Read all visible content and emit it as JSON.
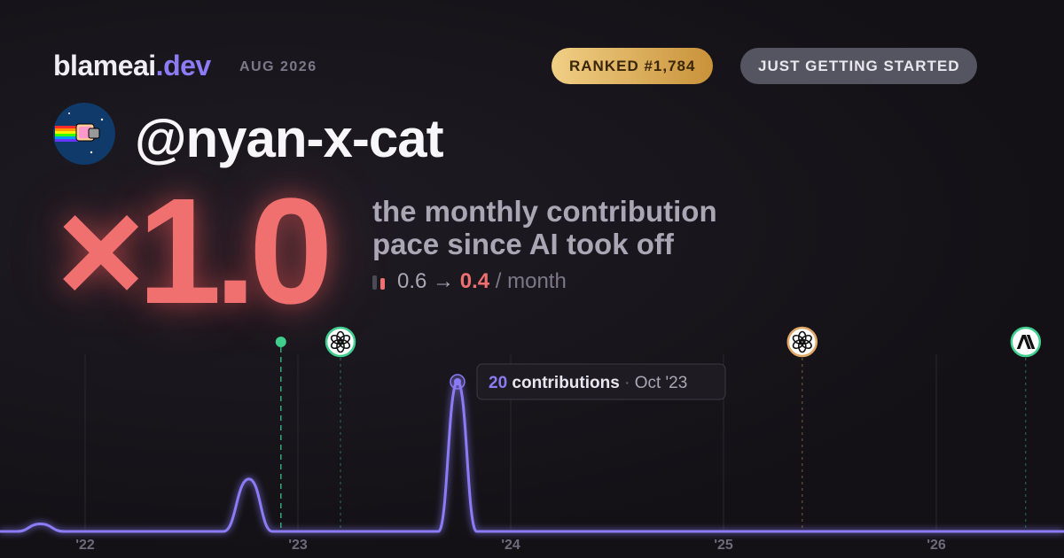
{
  "header": {
    "brand": "blameai",
    "brand_suffix": ".dev",
    "date": "AUG 2026",
    "rank_badge": "RANKED #1,784",
    "status_badge": "JUST GETTING STARTED"
  },
  "profile": {
    "handle": "@nyan-x-cat",
    "multiplier": "×1.0",
    "description_line_1": "the monthly contribution",
    "description_line_2": "pace since AI took off",
    "pace_before": "0.6",
    "pace_arrow": "→",
    "pace_after": "0.4",
    "pace_unit": "/ month"
  },
  "chart_data": {
    "type": "line",
    "x": [
      2021.6,
      2021.68,
      2021.79,
      2021.9,
      2022.65,
      2022.77,
      2022.88,
      2023.66,
      2023.75,
      2023.84,
      2026.6
    ],
    "series": [
      {
        "name": "contributions",
        "color": "#8b7cf6",
        "values": [
          0,
          0,
          1,
          0,
          0,
          7,
          0,
          0,
          20,
          0,
          0
        ]
      }
    ],
    "xlim": [
      2021.6,
      2026.6
    ],
    "xticks": [
      {
        "value": 2022,
        "label": "'22"
      },
      {
        "value": 2023,
        "label": "'23"
      },
      {
        "value": 2024,
        "label": "'24"
      },
      {
        "value": 2025,
        "label": "'25"
      },
      {
        "value": 2026,
        "label": "'26"
      }
    ],
    "ylim": [
      0,
      20
    ],
    "grid": true,
    "tooltip_date": "Oct '23",
    "markers": [
      {
        "x": 2022.92,
        "color": "#3ecf8e"
      },
      {
        "x": 2023.2,
        "color": "#3ecf8e",
        "icon": "openai"
      },
      {
        "x": 2025.37,
        "color": "#e0a867",
        "icon": "openai"
      },
      {
        "x": 2026.42,
        "color": "#3ecf8e",
        "icon": "anthropic"
      }
    ]
  }
}
